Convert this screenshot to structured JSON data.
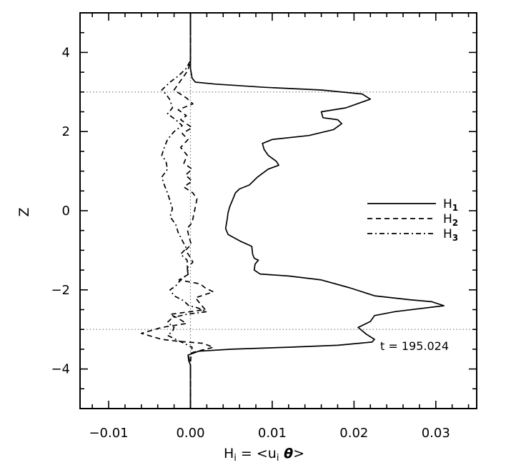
{
  "chart_data": {
    "type": "line",
    "xlabel": "H",
    "xlabel_sub": "i",
    "xlabel_rest": " = <u",
    "xlabel_rest_sub": "i",
    "xlabel_theta": " θ",
    "xlabel_end": ">",
    "ylabel": "Z",
    "xlim": [
      -0.0135,
      0.035
    ],
    "ylim": [
      -5,
      5
    ],
    "x_ticks": [
      -0.01,
      0.0,
      0.01,
      0.02,
      0.03
    ],
    "x_tick_labels": [
      "−0.01",
      "0.00",
      "0.01",
      "0.02",
      "0.03"
    ],
    "y_ticks": [
      -4,
      -2,
      0,
      2,
      4
    ],
    "y_tick_labels": [
      "−4",
      "−2",
      "0",
      "2",
      "4"
    ],
    "reference_lines": {
      "horizontal": [
        3,
        -3
      ],
      "vertical": [
        0
      ]
    },
    "annotation": "t = 195.024",
    "legend_position": "right",
    "series": [
      {
        "name": "H",
        "name_sub": "1",
        "dash": "solid",
        "points": [
          [
            0.0,
            5.0
          ],
          [
            0.0,
            3.6
          ],
          [
            0.0002,
            3.35
          ],
          [
            0.0006,
            3.25
          ],
          [
            0.003,
            3.2
          ],
          [
            0.009,
            3.12
          ],
          [
            0.016,
            3.05
          ],
          [
            0.021,
            2.95
          ],
          [
            0.022,
            2.82
          ],
          [
            0.019,
            2.6
          ],
          [
            0.016,
            2.5
          ],
          [
            0.0162,
            2.35
          ],
          [
            0.018,
            2.3
          ],
          [
            0.0185,
            2.2
          ],
          [
            0.0175,
            2.05
          ],
          [
            0.0145,
            1.9
          ],
          [
            0.01,
            1.8
          ],
          [
            0.0088,
            1.7
          ],
          [
            0.009,
            1.55
          ],
          [
            0.0095,
            1.4
          ],
          [
            0.0105,
            1.25
          ],
          [
            0.0108,
            1.15
          ],
          [
            0.0095,
            1.05
          ],
          [
            0.0082,
            0.85
          ],
          [
            0.0072,
            0.65
          ],
          [
            0.006,
            0.55
          ],
          [
            0.0055,
            0.45
          ],
          [
            0.0052,
            0.3
          ],
          [
            0.0048,
            0.1
          ],
          [
            0.0046,
            -0.05
          ],
          [
            0.0045,
            -0.2
          ],
          [
            0.0043,
            -0.45
          ],
          [
            0.0046,
            -0.6
          ],
          [
            0.0062,
            -0.78
          ],
          [
            0.0075,
            -0.9
          ],
          [
            0.0076,
            -1.1
          ],
          [
            0.0078,
            -1.2
          ],
          [
            0.0083,
            -1.25
          ],
          [
            0.0079,
            -1.35
          ],
          [
            0.0078,
            -1.5
          ],
          [
            0.0085,
            -1.6
          ],
          [
            0.012,
            -1.65
          ],
          [
            0.016,
            -1.75
          ],
          [
            0.0195,
            -1.95
          ],
          [
            0.0225,
            -2.15
          ],
          [
            0.0268,
            -2.25
          ],
          [
            0.0295,
            -2.3
          ],
          [
            0.031,
            -2.4
          ],
          [
            0.025,
            -2.55
          ],
          [
            0.0225,
            -2.65
          ],
          [
            0.022,
            -2.8
          ],
          [
            0.0205,
            -2.95
          ],
          [
            0.0215,
            -3.12
          ],
          [
            0.0225,
            -3.25
          ],
          [
            0.0222,
            -3.32
          ],
          [
            0.018,
            -3.4
          ],
          [
            0.012,
            -3.45
          ],
          [
            0.005,
            -3.5
          ],
          [
            0.001,
            -3.55
          ],
          [
            -0.0003,
            -3.65
          ],
          [
            -0.0002,
            -3.8
          ],
          [
            0.0,
            -3.9
          ],
          [
            0.0,
            -5.0
          ]
        ]
      },
      {
        "name": "H",
        "name_sub": "2",
        "dash": "dashed",
        "points": [
          [
            0.0,
            5.0
          ],
          [
            0.0,
            3.8
          ],
          [
            -0.0003,
            3.55
          ],
          [
            -0.0008,
            3.4
          ],
          [
            -0.0015,
            3.2
          ],
          [
            -0.002,
            3.05
          ],
          [
            -0.0005,
            2.85
          ],
          [
            0.0003,
            2.7
          ],
          [
            -0.0015,
            2.55
          ],
          [
            -0.0005,
            2.4
          ],
          [
            -0.0012,
            2.3
          ],
          [
            0.0002,
            2.1
          ],
          [
            -0.001,
            1.95
          ],
          [
            -0.0003,
            1.8
          ],
          [
            -0.0012,
            1.6
          ],
          [
            -0.0004,
            1.4
          ],
          [
            -0.0008,
            1.2
          ],
          [
            0.0002,
            1.05
          ],
          [
            -0.0006,
            0.9
          ],
          [
            0.0002,
            0.75
          ],
          [
            -0.0008,
            0.6
          ],
          [
            0.0003,
            0.45
          ],
          [
            0.0008,
            0.3
          ],
          [
            0.0006,
            0.1
          ],
          [
            0.0004,
            -0.1
          ],
          [
            0.0002,
            -0.3
          ],
          [
            -0.0004,
            -0.45
          ],
          [
            -0.0002,
            -0.65
          ],
          [
            0.0001,
            -0.85
          ],
          [
            -0.0006,
            -1.0
          ],
          [
            -0.0001,
            -1.15
          ],
          [
            0.0003,
            -1.3
          ],
          [
            -0.0004,
            -1.45
          ],
          [
            -0.0002,
            -1.6
          ],
          [
            -0.0014,
            -1.75
          ],
          [
            0.0012,
            -1.85
          ],
          [
            0.0018,
            -1.95
          ],
          [
            0.0028,
            -2.05
          ],
          [
            0.0006,
            -2.2
          ],
          [
            0.0012,
            -2.35
          ],
          [
            0.0018,
            -2.5
          ],
          [
            -0.0025,
            -2.62
          ],
          [
            -0.0015,
            -2.72
          ],
          [
            -0.0005,
            -2.85
          ],
          [
            -0.0035,
            -2.95
          ],
          [
            -0.006,
            -3.1
          ],
          [
            -0.0035,
            -3.25
          ],
          [
            -0.0015,
            -3.3
          ],
          [
            0.0015,
            -3.35
          ],
          [
            0.0028,
            -3.45
          ],
          [
            0.0015,
            -3.52
          ],
          [
            0.0003,
            -3.58
          ],
          [
            -0.0002,
            -3.7
          ],
          [
            0.0,
            -3.9
          ],
          [
            0.0,
            -5.0
          ]
        ]
      },
      {
        "name": "H",
        "name_sub": "3",
        "dash": "dashdot",
        "points": [
          [
            0.0,
            5.0
          ],
          [
            0.0,
            3.8
          ],
          [
            -0.0005,
            3.6
          ],
          [
            -0.0015,
            3.4
          ],
          [
            -0.0025,
            3.25
          ],
          [
            -0.0035,
            3.05
          ],
          [
            -0.003,
            2.95
          ],
          [
            -0.0025,
            2.8
          ],
          [
            -0.0022,
            2.6
          ],
          [
            -0.0028,
            2.45
          ],
          [
            -0.0018,
            2.3
          ],
          [
            -0.001,
            2.15
          ],
          [
            -0.002,
            2.0
          ],
          [
            -0.0028,
            1.8
          ],
          [
            -0.0032,
            1.6
          ],
          [
            -0.0035,
            1.4
          ],
          [
            -0.003,
            1.25
          ],
          [
            -0.0028,
            1.05
          ],
          [
            -0.0035,
            0.85
          ],
          [
            -0.0032,
            0.65
          ],
          [
            -0.0028,
            0.45
          ],
          [
            -0.0025,
            0.25
          ],
          [
            -0.0022,
            0.05
          ],
          [
            -0.0025,
            -0.15
          ],
          [
            -0.0018,
            -0.35
          ],
          [
            -0.0015,
            -0.55
          ],
          [
            -0.001,
            -0.75
          ],
          [
            -0.0005,
            -0.95
          ],
          [
            -0.0012,
            -1.1
          ],
          [
            -0.0004,
            -1.25
          ],
          [
            -0.0004,
            -1.45
          ],
          [
            -0.0003,
            -1.6
          ],
          [
            -0.0012,
            -1.75
          ],
          [
            -0.0018,
            -1.9
          ],
          [
            -0.0025,
            -2.0
          ],
          [
            -0.002,
            -2.15
          ],
          [
            -0.0008,
            -2.28
          ],
          [
            -0.0002,
            -2.4
          ],
          [
            0.0008,
            -2.45
          ],
          [
            0.002,
            -2.55
          ],
          [
            -0.0005,
            -2.62
          ],
          [
            -0.0022,
            -2.7
          ],
          [
            -0.0028,
            -2.82
          ],
          [
            -0.002,
            -2.95
          ],
          [
            -0.0022,
            -3.05
          ],
          [
            -0.0028,
            -3.15
          ],
          [
            -0.0015,
            -3.28
          ],
          [
            0.0002,
            -3.45
          ],
          [
            0.0001,
            -3.6
          ],
          [
            0.0,
            -3.85
          ],
          [
            0.0,
            -5.0
          ]
        ]
      }
    ]
  }
}
